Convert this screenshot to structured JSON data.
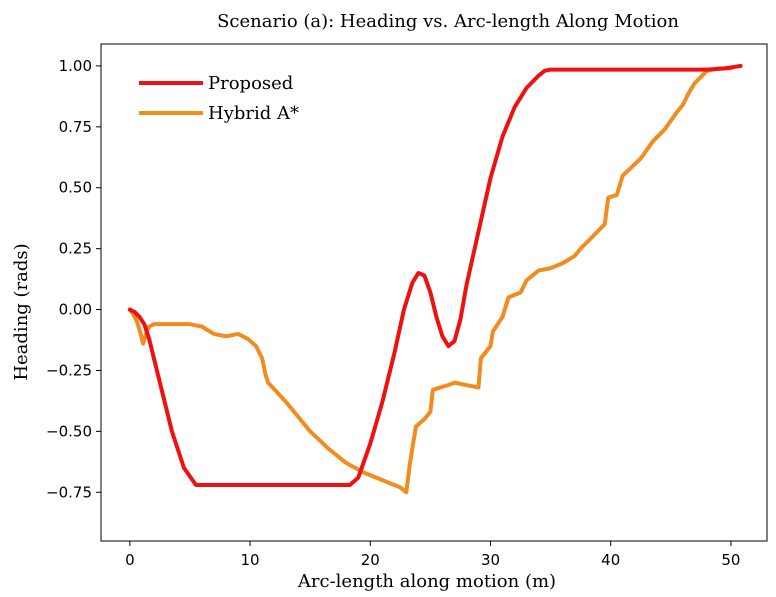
{
  "chart_data": {
    "type": "line",
    "title": "Scenario (a): Heading vs. Arc-length Along Motion",
    "xlabel": "Arc-length along motion (m)",
    "ylabel": "Heading (rads)",
    "xlim": [
      -2.4,
      53
    ],
    "ylim": [
      -0.95,
      1.09
    ],
    "xticks": [
      0,
      10,
      20,
      30,
      40,
      50
    ],
    "xtick_labels": [
      "0",
      "10",
      "20",
      "30",
      "40",
      "50"
    ],
    "yticks": [
      -0.75,
      -0.5,
      -0.25,
      0.0,
      0.25,
      0.5,
      0.75,
      1.0
    ],
    "ytick_labels": [
      "−0.75",
      "−0.50",
      "−0.25",
      "0.00",
      "0.25",
      "0.50",
      "0.75",
      "1.00"
    ],
    "grid": false,
    "legend_position": "top-left",
    "series": [
      {
        "name": "Proposed",
        "color": "#ee1111",
        "x": [
          0,
          0.4,
          0.8,
          1.2,
          1.6,
          2.5,
          3.5,
          4.5,
          5.5,
          8,
          12,
          16,
          18.3,
          19,
          20,
          21,
          22,
          22.8,
          23.5,
          24,
          24.5,
          25,
          25.5,
          26,
          26.5,
          27,
          27.5,
          28,
          29,
          30,
          31,
          32,
          33,
          34,
          34.5,
          35,
          35.5,
          40,
          45,
          48,
          49.5,
          50.8
        ],
        "y": [
          0.0,
          -0.01,
          -0.03,
          -0.06,
          -0.12,
          -0.3,
          -0.5,
          -0.65,
          -0.72,
          -0.72,
          -0.72,
          -0.72,
          -0.72,
          -0.69,
          -0.55,
          -0.38,
          -0.18,
          0.0,
          0.11,
          0.15,
          0.14,
          0.07,
          -0.03,
          -0.11,
          -0.15,
          -0.13,
          -0.04,
          0.1,
          0.32,
          0.54,
          0.71,
          0.83,
          0.91,
          0.96,
          0.98,
          0.985,
          0.985,
          0.985,
          0.985,
          0.985,
          0.99,
          1.0
        ]
      },
      {
        "name": "Hybrid A*",
        "color": "#f28c1e",
        "x": [
          0,
          0.3,
          0.6,
          0.9,
          1.1,
          1.4,
          1.6,
          2.0,
          3.0,
          5.0,
          6.0,
          7.0,
          8.0,
          9.0,
          9.8,
          10.5,
          11.0,
          11.3,
          11.5,
          13.0,
          15.0,
          16.5,
          18.0,
          19.5,
          21.0,
          22.5,
          23.0,
          23.3,
          23.5,
          23.8,
          24.5,
          25.0,
          25.2,
          25.8,
          26.5,
          27.0,
          28.0,
          29.0,
          29.2,
          30.0,
          30.2,
          31.0,
          31.5,
          32.5,
          33.0,
          34.0,
          35.0,
          36.0,
          37.0,
          37.5,
          38.5,
          39.5,
          39.8,
          40.5,
          41.0,
          42.5,
          43.5,
          44.5,
          45.5,
          46.0,
          46.5,
          47.0,
          48.0,
          49.0,
          50.0
        ],
        "y": [
          0.0,
          -0.02,
          -0.05,
          -0.1,
          -0.14,
          -0.09,
          -0.07,
          -0.06,
          -0.06,
          -0.06,
          -0.07,
          -0.1,
          -0.11,
          -0.1,
          -0.12,
          -0.15,
          -0.2,
          -0.27,
          -0.3,
          -0.38,
          -0.5,
          -0.57,
          -0.63,
          -0.67,
          -0.7,
          -0.73,
          -0.75,
          -0.63,
          -0.57,
          -0.48,
          -0.45,
          -0.42,
          -0.33,
          -0.32,
          -0.31,
          -0.3,
          -0.31,
          -0.32,
          -0.2,
          -0.15,
          -0.09,
          -0.03,
          0.05,
          0.07,
          0.12,
          0.16,
          0.17,
          0.19,
          0.22,
          0.25,
          0.3,
          0.35,
          0.46,
          0.47,
          0.55,
          0.62,
          0.69,
          0.74,
          0.81,
          0.84,
          0.89,
          0.93,
          0.98,
          0.99,
          0.99
        ]
      }
    ]
  }
}
